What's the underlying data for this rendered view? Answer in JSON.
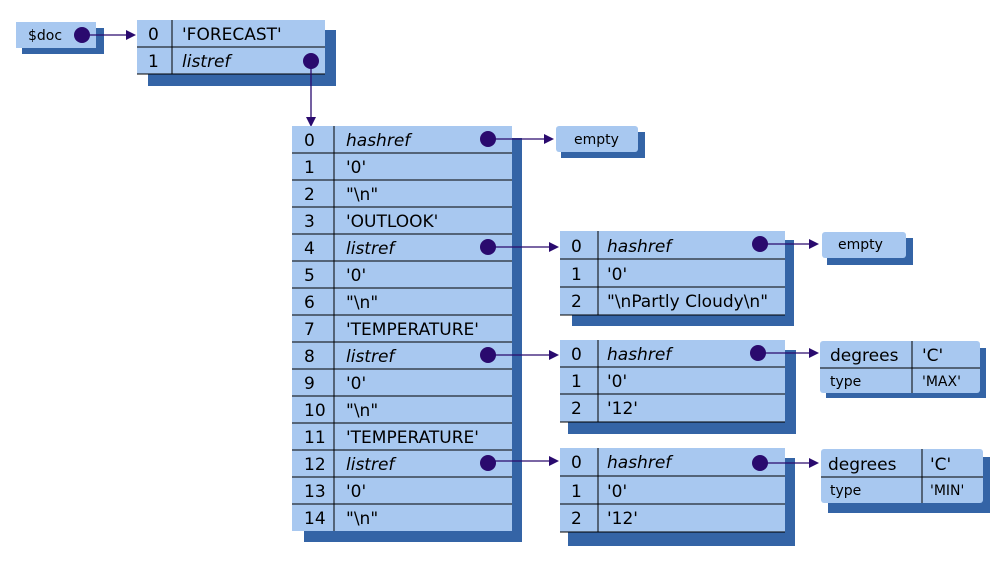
{
  "colors": {
    "box_fill": "#a8c8f0",
    "shadow": "#3464a6",
    "dot": "#2a0a6e",
    "grid": "#000000"
  },
  "doc_label": "$doc",
  "empty_label": "empty",
  "top_array": [
    {
      "index": "0",
      "value": "'FORECAST'",
      "italic": false
    },
    {
      "index": "1",
      "value": "listref",
      "italic": true
    }
  ],
  "main_array": [
    {
      "index": "0",
      "value": "hashref",
      "italic": true
    },
    {
      "index": "1",
      "value": "'0'",
      "italic": false
    },
    {
      "index": "2",
      "value": "\"\\n\"",
      "italic": false
    },
    {
      "index": "3",
      "value": "'OUTLOOK'",
      "italic": false
    },
    {
      "index": "4",
      "value": "listref",
      "italic": true
    },
    {
      "index": "5",
      "value": "'0'",
      "italic": false
    },
    {
      "index": "6",
      "value": "\"\\n\"",
      "italic": false
    },
    {
      "index": "7",
      "value": "'TEMPERATURE'",
      "italic": false
    },
    {
      "index": "8",
      "value": "listref",
      "italic": true
    },
    {
      "index": "9",
      "value": "'0'",
      "italic": false
    },
    {
      "index": "10",
      "value": "\"\\n\"",
      "italic": false
    },
    {
      "index": "11",
      "value": "'TEMPERATURE'",
      "italic": false
    },
    {
      "index": "12",
      "value": "listref",
      "italic": true
    },
    {
      "index": "13",
      "value": "'0'",
      "italic": false
    },
    {
      "index": "14",
      "value": "\"\\n\"",
      "italic": false
    }
  ],
  "outlook_array": [
    {
      "index": "0",
      "value": "hashref",
      "italic": true
    },
    {
      "index": "1",
      "value": "'0'",
      "italic": false
    },
    {
      "index": "2",
      "value": "\"\\nPartly Cloudy\\n\"",
      "italic": false
    }
  ],
  "temp_max_array": [
    {
      "index": "0",
      "value": "hashref",
      "italic": true
    },
    {
      "index": "1",
      "value": "'0'",
      "italic": false
    },
    {
      "index": "2",
      "value": "'12'",
      "italic": false
    }
  ],
  "temp_min_array": [
    {
      "index": "0",
      "value": "hashref",
      "italic": true
    },
    {
      "index": "1",
      "value": "'0'",
      "italic": false
    },
    {
      "index": "2",
      "value": "'12'",
      "italic": false
    }
  ],
  "max_hash": [
    {
      "key": "degrees",
      "value": "'C'"
    },
    {
      "key": "type",
      "value": "'MAX'"
    }
  ],
  "min_hash": [
    {
      "key": "degrees",
      "value": "'C'"
    },
    {
      "key": "type",
      "value": "'MIN'"
    }
  ]
}
